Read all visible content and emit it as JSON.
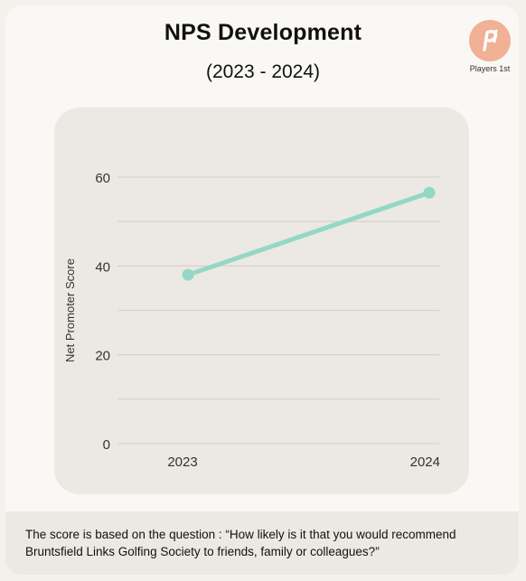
{
  "header": {
    "title": "NPS Development",
    "subtitle": "(2023 - 2024)",
    "brand_label": "Players 1st",
    "logo_icon": "players-1st-logo-icon",
    "logo_color": "#f0b195"
  },
  "chart_data": {
    "type": "line",
    "title": "NPS Development",
    "subtitle": "(2023 - 2024)",
    "xlabel": "",
    "ylabel": "Net Promoter Score",
    "categories": [
      "2023",
      "2024"
    ],
    "series": [
      {
        "values": [
          38,
          56.5
        ],
        "color": "#93d8c6"
      }
    ],
    "ylim": [
      0,
      60
    ],
    "yticks": [
      0,
      20,
      40,
      60
    ],
    "grid": true,
    "legend": "none"
  },
  "footer": {
    "text": "The score is based on the question : “How likely is it that you would recommend Bruntsfield Links Golfing Society to friends, family or colleagues?”"
  }
}
